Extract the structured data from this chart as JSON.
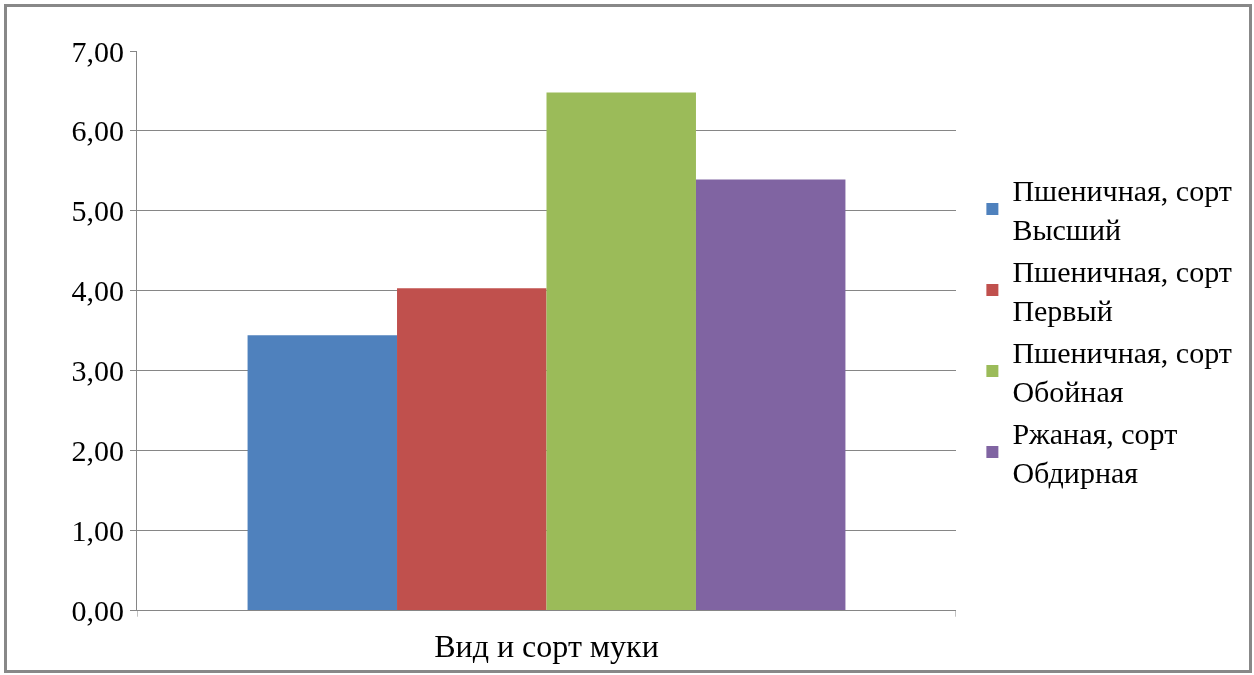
{
  "chart_data": {
    "type": "bar",
    "xlabel": "Вид и сорт муки",
    "categories": [
      null
    ],
    "series": [
      {
        "name": "Пшеничная, сорт Высший",
        "color": "#4f81bd",
        "values": [
          3.44
        ]
      },
      {
        "name": "Пшеничная, сорт Первый",
        "color": "#c0504d",
        "values": [
          4.03
        ]
      },
      {
        "name": "Пшеничная, сорт Обойная",
        "color": "#9bbb59",
        "values": [
          6.48
        ]
      },
      {
        "name": "Ржаная, сорт Обдирная",
        "color": "#8064a2",
        "values": [
          5.39
        ]
      }
    ],
    "ylim": [
      0,
      7
    ],
    "yticks": [
      {
        "value": 0,
        "label": "0,00"
      },
      {
        "value": 1,
        "label": "1,00"
      },
      {
        "value": 2,
        "label": "2,00"
      },
      {
        "value": 3,
        "label": "3,00"
      },
      {
        "value": 4,
        "label": "4,00"
      },
      {
        "value": 5,
        "label": "5,00"
      },
      {
        "value": 6,
        "label": "6,00"
      },
      {
        "value": 7,
        "label": "7,00"
      }
    ],
    "grid": "y",
    "legend": "right"
  }
}
